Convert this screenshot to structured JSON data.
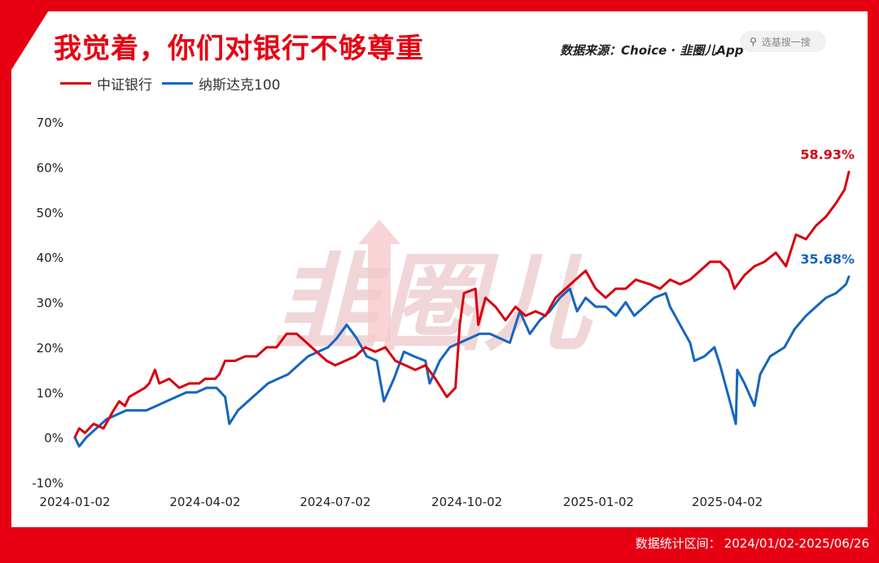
{
  "header": {
    "title": "我觉着，你们对银行不够尊重",
    "source": "数据来源：Choice · 韭圈儿App",
    "search_placeholder": "选基搜一搜",
    "watermark": "韭圈儿"
  },
  "footer": {
    "label": "数据统计区间：",
    "range": "2024/01/02-2025/06/26"
  },
  "colors": {
    "red": "#d7000f",
    "blue": "#1565c0",
    "accent": "#e60012"
  },
  "chart_data": {
    "type": "line",
    "xlabel": "",
    "ylabel": "",
    "ylim": [
      -10,
      70
    ],
    "yticks": [
      -10,
      0,
      10,
      20,
      30,
      40,
      50,
      60,
      70
    ],
    "ytick_labels": [
      "-10%",
      "0%",
      "10%",
      "20%",
      "30%",
      "40%",
      "50%",
      "60%",
      "70%"
    ],
    "xlim": [
      "2024-01-02",
      "2025-06-26"
    ],
    "xticks": [
      "2024-01-02",
      "2024-04-02",
      "2024-07-02",
      "2024-10-02",
      "2025-01-02",
      "2025-04-02"
    ],
    "grid": false,
    "legend": "top-left",
    "series": [
      {
        "name": "中证银行",
        "color": "#d7000f",
        "end_label": "58.93%",
        "points": [
          [
            "2024-01-02",
            0
          ],
          [
            "2024-01-05",
            2
          ],
          [
            "2024-01-09",
            1
          ],
          [
            "2024-01-15",
            3
          ],
          [
            "2024-01-22",
            2
          ],
          [
            "2024-01-29",
            6
          ],
          [
            "2024-02-02",
            8
          ],
          [
            "2024-02-06",
            7
          ],
          [
            "2024-02-09",
            9
          ],
          [
            "2024-02-20",
            11
          ],
          [
            "2024-02-23",
            12
          ],
          [
            "2024-02-27",
            15
          ],
          [
            "2024-03-01",
            12
          ],
          [
            "2024-03-08",
            13
          ],
          [
            "2024-03-15",
            11
          ],
          [
            "2024-03-22",
            12
          ],
          [
            "2024-03-29",
            12
          ],
          [
            "2024-04-02",
            13
          ],
          [
            "2024-04-09",
            13
          ],
          [
            "2024-04-12",
            14
          ],
          [
            "2024-04-16",
            17
          ],
          [
            "2024-04-23",
            17
          ],
          [
            "2024-04-30",
            18
          ],
          [
            "2024-05-08",
            18
          ],
          [
            "2024-05-15",
            20
          ],
          [
            "2024-05-22",
            20
          ],
          [
            "2024-05-29",
            23
          ],
          [
            "2024-06-05",
            23
          ],
          [
            "2024-06-12",
            21
          ],
          [
            "2024-06-19",
            19
          ],
          [
            "2024-06-26",
            17
          ],
          [
            "2024-07-02",
            16
          ],
          [
            "2024-07-09",
            17
          ],
          [
            "2024-07-16",
            18
          ],
          [
            "2024-07-23",
            20
          ],
          [
            "2024-07-30",
            19
          ],
          [
            "2024-08-06",
            20
          ],
          [
            "2024-08-13",
            17
          ],
          [
            "2024-08-20",
            16
          ],
          [
            "2024-08-27",
            15
          ],
          [
            "2024-09-03",
            16
          ],
          [
            "2024-09-10",
            13
          ],
          [
            "2024-09-18",
            9
          ],
          [
            "2024-09-24",
            11
          ],
          [
            "2024-09-27",
            25
          ],
          [
            "2024-09-30",
            32
          ],
          [
            "2024-10-08",
            33
          ],
          [
            "2024-10-10",
            25
          ],
          [
            "2024-10-15",
            31
          ],
          [
            "2024-10-22",
            29
          ],
          [
            "2024-10-29",
            26
          ],
          [
            "2024-11-05",
            29
          ],
          [
            "2024-11-12",
            27
          ],
          [
            "2024-11-19",
            28
          ],
          [
            "2024-11-26",
            27
          ],
          [
            "2024-12-03",
            31
          ],
          [
            "2024-12-10",
            33
          ],
          [
            "2024-12-17",
            35
          ],
          [
            "2024-12-24",
            37
          ],
          [
            "2024-12-31",
            33
          ],
          [
            "2025-01-07",
            31
          ],
          [
            "2025-01-14",
            33
          ],
          [
            "2025-01-21",
            33
          ],
          [
            "2025-01-28",
            35
          ],
          [
            "2025-02-07",
            34
          ],
          [
            "2025-02-14",
            33
          ],
          [
            "2025-02-21",
            35
          ],
          [
            "2025-02-28",
            34
          ],
          [
            "2025-03-07",
            35
          ],
          [
            "2025-03-14",
            37
          ],
          [
            "2025-03-21",
            39
          ],
          [
            "2025-03-28",
            39
          ],
          [
            "2025-04-03",
            37
          ],
          [
            "2025-04-07",
            33
          ],
          [
            "2025-04-14",
            36
          ],
          [
            "2025-04-21",
            38
          ],
          [
            "2025-04-28",
            39
          ],
          [
            "2025-05-06",
            41
          ],
          [
            "2025-05-13",
            38
          ],
          [
            "2025-05-20",
            45
          ],
          [
            "2025-05-27",
            44
          ],
          [
            "2025-06-03",
            47
          ],
          [
            "2025-06-10",
            49
          ],
          [
            "2025-06-17",
            52
          ],
          [
            "2025-06-23",
            55
          ],
          [
            "2025-06-26",
            58.93
          ]
        ]
      },
      {
        "name": "纳斯达克100",
        "color": "#1565c0",
        "end_label": "35.68%",
        "points": [
          [
            "2024-01-02",
            0
          ],
          [
            "2024-01-05",
            -2
          ],
          [
            "2024-01-10",
            0
          ],
          [
            "2024-01-17",
            2
          ],
          [
            "2024-01-24",
            4
          ],
          [
            "2024-01-31",
            5
          ],
          [
            "2024-02-07",
            6
          ],
          [
            "2024-02-14",
            6
          ],
          [
            "2024-02-21",
            6
          ],
          [
            "2024-02-28",
            7
          ],
          [
            "2024-03-06",
            8
          ],
          [
            "2024-03-13",
            9
          ],
          [
            "2024-03-20",
            10
          ],
          [
            "2024-03-27",
            10
          ],
          [
            "2024-04-03",
            11
          ],
          [
            "2024-04-10",
            11
          ],
          [
            "2024-04-16",
            9
          ],
          [
            "2024-04-19",
            3
          ],
          [
            "2024-04-25",
            6
          ],
          [
            "2024-05-02",
            8
          ],
          [
            "2024-05-09",
            10
          ],
          [
            "2024-05-16",
            12
          ],
          [
            "2024-05-23",
            13
          ],
          [
            "2024-05-30",
            14
          ],
          [
            "2024-06-06",
            16
          ],
          [
            "2024-06-13",
            18
          ],
          [
            "2024-06-20",
            19
          ],
          [
            "2024-06-27",
            20
          ],
          [
            "2024-07-03",
            22
          ],
          [
            "2024-07-10",
            25
          ],
          [
            "2024-07-17",
            22
          ],
          [
            "2024-07-24",
            18
          ],
          [
            "2024-07-31",
            17
          ],
          [
            "2024-08-05",
            8
          ],
          [
            "2024-08-12",
            13
          ],
          [
            "2024-08-19",
            19
          ],
          [
            "2024-08-26",
            18
          ],
          [
            "2024-09-03",
            17
          ],
          [
            "2024-09-06",
            12
          ],
          [
            "2024-09-13",
            17
          ],
          [
            "2024-09-20",
            20
          ],
          [
            "2024-09-27",
            21
          ],
          [
            "2024-10-04",
            22
          ],
          [
            "2024-10-11",
            23
          ],
          [
            "2024-10-18",
            23
          ],
          [
            "2024-10-25",
            22
          ],
          [
            "2024-11-01",
            21
          ],
          [
            "2024-11-08",
            28
          ],
          [
            "2024-11-15",
            23
          ],
          [
            "2024-11-22",
            26
          ],
          [
            "2024-11-29",
            28
          ],
          [
            "2024-12-06",
            31
          ],
          [
            "2024-12-13",
            33
          ],
          [
            "2024-12-18",
            28
          ],
          [
            "2024-12-24",
            31
          ],
          [
            "2024-12-31",
            29
          ],
          [
            "2025-01-07",
            29
          ],
          [
            "2025-01-14",
            27
          ],
          [
            "2025-01-21",
            30
          ],
          [
            "2025-01-27",
            27
          ],
          [
            "2025-02-03",
            29
          ],
          [
            "2025-02-10",
            31
          ],
          [
            "2025-02-18",
            32
          ],
          [
            "2025-02-21",
            29
          ],
          [
            "2025-02-28",
            25
          ],
          [
            "2025-03-07",
            21
          ],
          [
            "2025-03-10",
            17
          ],
          [
            "2025-03-17",
            18
          ],
          [
            "2025-03-24",
            20
          ],
          [
            "2025-03-28",
            16
          ],
          [
            "2025-04-03",
            9
          ],
          [
            "2025-04-08",
            3
          ],
          [
            "2025-04-09",
            15
          ],
          [
            "2025-04-14",
            12
          ],
          [
            "2025-04-21",
            7
          ],
          [
            "2025-04-25",
            14
          ],
          [
            "2025-05-02",
            18
          ],
          [
            "2025-05-12",
            20
          ],
          [
            "2025-05-19",
            24
          ],
          [
            "2025-05-27",
            27
          ],
          [
            "2025-06-03",
            29
          ],
          [
            "2025-06-10",
            31
          ],
          [
            "2025-06-17",
            32
          ],
          [
            "2025-06-24",
            34
          ],
          [
            "2025-06-26",
            35.68
          ]
        ]
      }
    ]
  }
}
